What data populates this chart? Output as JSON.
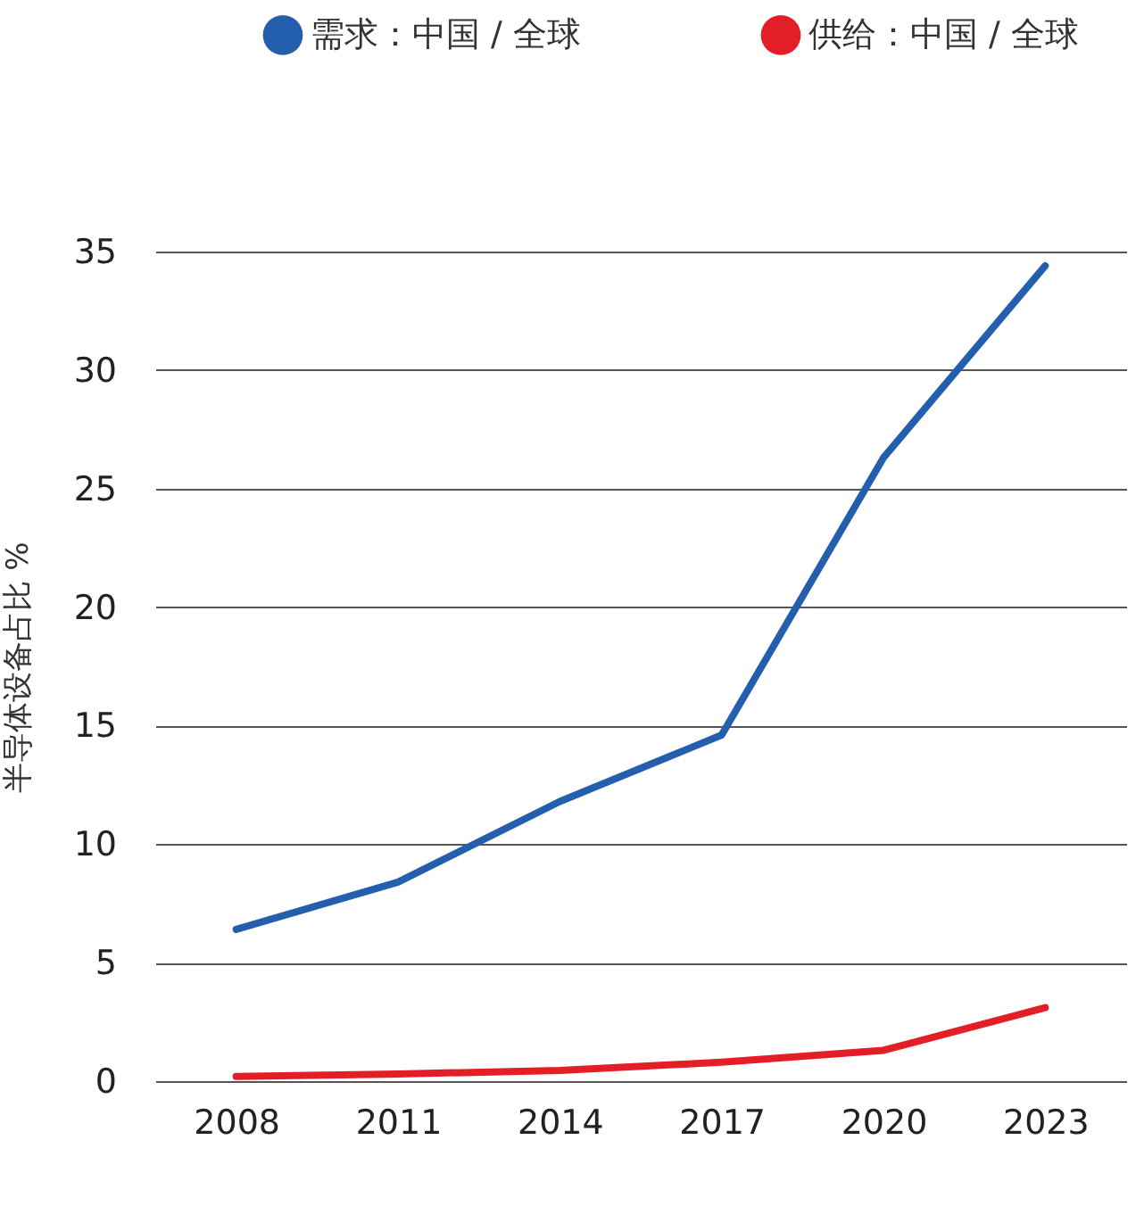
{
  "chart_data": {
    "type": "line",
    "ylabel": "半导体设备占比 %",
    "categories": [
      "2008",
      "2011",
      "2014",
      "2017",
      "2020",
      "2023"
    ],
    "series": [
      {
        "name": "需求：中国 / 全球",
        "color": "#245fae",
        "values": [
          6.4,
          8.4,
          11.8,
          14.6,
          26.3,
          34.4
        ]
      },
      {
        "name": "供给：中国 / 全球",
        "color": "#e31e26",
        "values": [
          0.2,
          0.3,
          0.45,
          0.8,
          1.3,
          3.1
        ]
      }
    ],
    "ylim": [
      0,
      35
    ],
    "yticks": [
      0,
      5,
      10,
      15,
      20,
      25,
      30,
      35
    ],
    "grid": "y",
    "legend": "top",
    "marker": "none",
    "line_style": "solid"
  }
}
